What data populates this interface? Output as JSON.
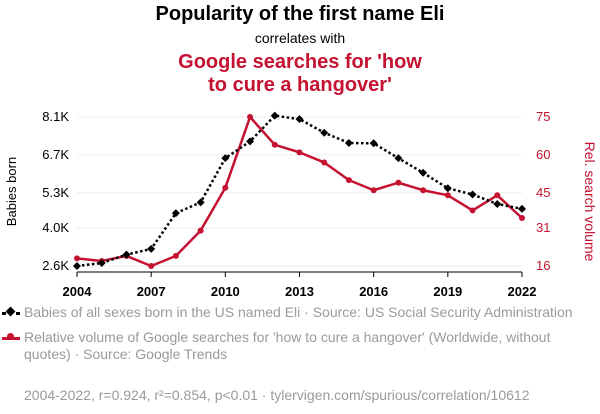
{
  "header": {
    "title": "Popularity of the first name Eli",
    "subtitle": "correlates with",
    "title2": "Google searches for 'how to cure a hangover'",
    "title2_color": "#c41230"
  },
  "legend": {
    "series1": "Babies of all sexes born in the US named Eli · Source: US Social Security Administration",
    "series2": "Relative volume of Google searches for 'how to cure a hangover' (Worldwide, without quotes) · Source: Google Trends"
  },
  "footer": "2004-2022, r=0.924, r²=0.854, p<0.01 · tylervigen.com/spurious/correlation/10612",
  "chart_data": {
    "type": "line",
    "x": [
      2004,
      2005,
      2006,
      2007,
      2008,
      2009,
      2010,
      2011,
      2012,
      2013,
      2014,
      2015,
      2016,
      2017,
      2018,
      2019,
      2020,
      2021,
      2022
    ],
    "xlim": [
      2004,
      2022
    ],
    "xticks": [
      "2004",
      "2007",
      "2010",
      "2013",
      "2016",
      "2019",
      "2022"
    ],
    "ylabel_left": "Babies born",
    "ylabel_right": "Rel. search volume",
    "ylim_left": [
      2600,
      8100
    ],
    "ylim_right": [
      16,
      75
    ],
    "yticks_left": [
      {
        "v": 2600,
        "label": "2.6K"
      },
      {
        "v": 4000,
        "label": "4.0K"
      },
      {
        "v": 5300,
        "label": "5.3K"
      },
      {
        "v": 6700,
        "label": "6.7K"
      },
      {
        "v": 8100,
        "label": "8.1K"
      }
    ],
    "yticks_right": [
      {
        "v": 16,
        "label": "16"
      },
      {
        "v": 31,
        "label": "31"
      },
      {
        "v": 45,
        "label": "45"
      },
      {
        "v": 60,
        "label": "60"
      },
      {
        "v": 75,
        "label": "75"
      }
    ],
    "series": [
      {
        "name": "Babies of all sexes born in the US named Eli",
        "axis": "left",
        "color": "#000000",
        "style": "dotted",
        "marker": "diamond",
        "values": [
          2600,
          2710,
          3020,
          3230,
          4550,
          4950,
          6580,
          7200,
          8150,
          8020,
          7520,
          7140,
          7130,
          6580,
          6040,
          5470,
          5240,
          4890,
          4710
        ]
      },
      {
        "name": "Relative volume of Google searches for 'how to cure a hangover'",
        "axis": "right",
        "color": "#c41230",
        "style": "solid",
        "marker": "circle",
        "values": [
          19,
          18,
          20,
          16,
          20,
          30,
          47,
          75,
          64,
          61,
          57,
          50,
          46,
          49,
          46,
          44,
          38,
          44,
          35
        ]
      }
    ]
  }
}
